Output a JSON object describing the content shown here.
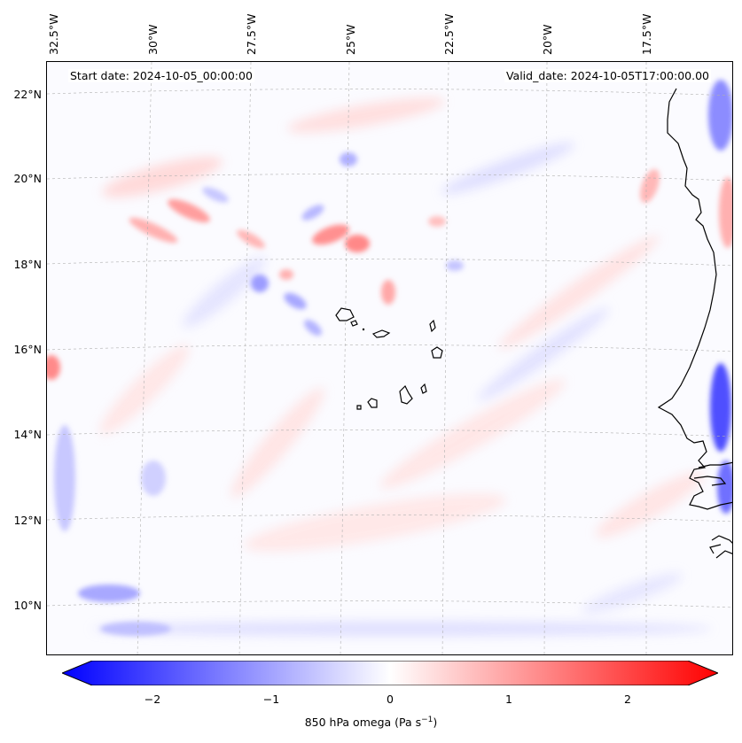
{
  "map": {
    "start_date": "Start date: 2024-10-05_00:00:00",
    "valid_date": "Valid_date: 2024-10-05T17:00:00.00",
    "lon_labels": [
      "32.5°W",
      "30°W",
      "27.5°W",
      "25°W",
      "22.5°W",
      "20°W",
      "17.5°W"
    ],
    "lat_labels": [
      "22°N",
      "20°N",
      "18°N",
      "16°N",
      "14°N",
      "12°N",
      "10°N"
    ],
    "grid": true,
    "colormap": "bwr",
    "colors": {
      "negative": "#0000ff",
      "zero": "#ffffff",
      "positive": "#ff0000",
      "coastline": "#000000",
      "grid": "#b0b0b0"
    }
  },
  "colorbar": {
    "ticks": [
      "−2",
      "−1",
      "0",
      "1",
      "2"
    ],
    "tick_values": [
      -2,
      -1,
      0,
      1,
      2
    ],
    "range": [
      -2.5,
      2.5
    ],
    "label_main": "850 hPa omega (Pa s",
    "label_sup": "−1",
    "label_end": ")"
  }
}
